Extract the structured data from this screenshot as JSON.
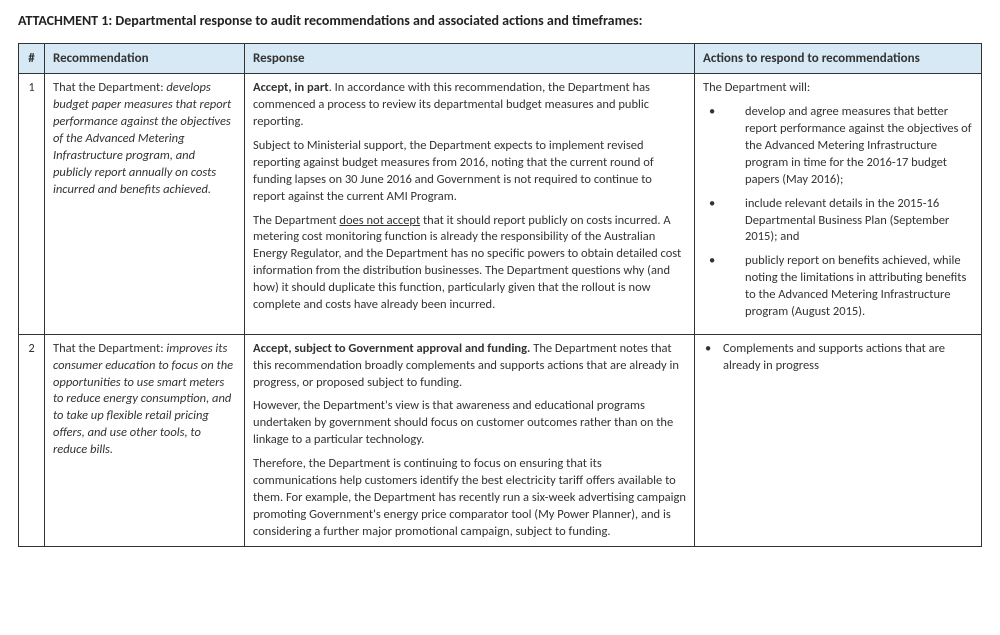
{
  "title": "ATTACHMENT 1: Departmental response to audit recommendations and associated actions and timeframes:",
  "headers": {
    "num": "#",
    "recommendation": "Recommendation",
    "response": "Response",
    "actions": "Actions to respond to recommendations"
  },
  "row1": {
    "num": "1",
    "rec_prefix": "That the Department: ",
    "rec_italic": "develops budget paper measures that report performance against the objectives of the Advanced Metering Infrastructure program, and publicly report annually on costs incurred and benefits achieved.",
    "resp_bold1": "Accept, in part",
    "resp_p1": ". In accordance with this recommendation, the Department has commenced a process to review its departmental budget measures and public reporting.",
    "resp_p2": "Subject to Ministerial support, the Department expects to implement revised reporting against budget measures from 2016, noting that the current round of funding lapses on 30 June 2016 and Government is not required to continue to report against the current AMI Program.",
    "resp_p3a": "The Department ",
    "resp_underline": "does not accept",
    "resp_p3b": " that it should report publicly on costs incurred. A metering cost monitoring function is already the responsibility of the Australian Energy Regulator, and the Department has no specific powers to obtain detailed cost information from the distribution businesses. The Department questions why (and how) it should duplicate this function, particularly given that the rollout is now complete and costs have already been incurred.",
    "act_intro": "The Department will:",
    "act_b1": "develop and agree measures that better report performance against the objectives of the Advanced Metering Infrastructure program in time for the 2016-17 budget papers (May 2016);",
    "act_b2": "include relevant details in the 2015-16 Departmental Business Plan (September 2015); and",
    "act_b3": "publicly report on benefits achieved, while noting the limitations in attributing benefits to the Advanced Metering Infrastructure program (August 2015)."
  },
  "row2": {
    "num": "2",
    "rec_prefix": "That the Department: ",
    "rec_italic": "improves its consumer education to focus on the opportunities to use smart meters to reduce energy consumption, and to take up flexible retail pricing offers, and use other tools, to reduce bills.",
    "resp_bold1": "Accept, subject to Government approval and funding.",
    "resp_p1": " The Department notes that this recommendation broadly complements and supports actions that are already in progress, or proposed subject to funding.",
    "resp_p2": "However, the Department's view is that awareness and educational programs undertaken by government should focus on customer outcomes rather than on the linkage to a particular technology.",
    "resp_p3": "Therefore, the Department is continuing to focus on ensuring that its communications help customers identify the best electricity tariff offers available to them. For example, the Department has recently run a six-week advertising campaign promoting Government's energy price comparator tool (My Power Planner), and is considering a further major promotional campaign, subject to funding.",
    "act_b1": "Complements and supports actions that are already in progress"
  }
}
